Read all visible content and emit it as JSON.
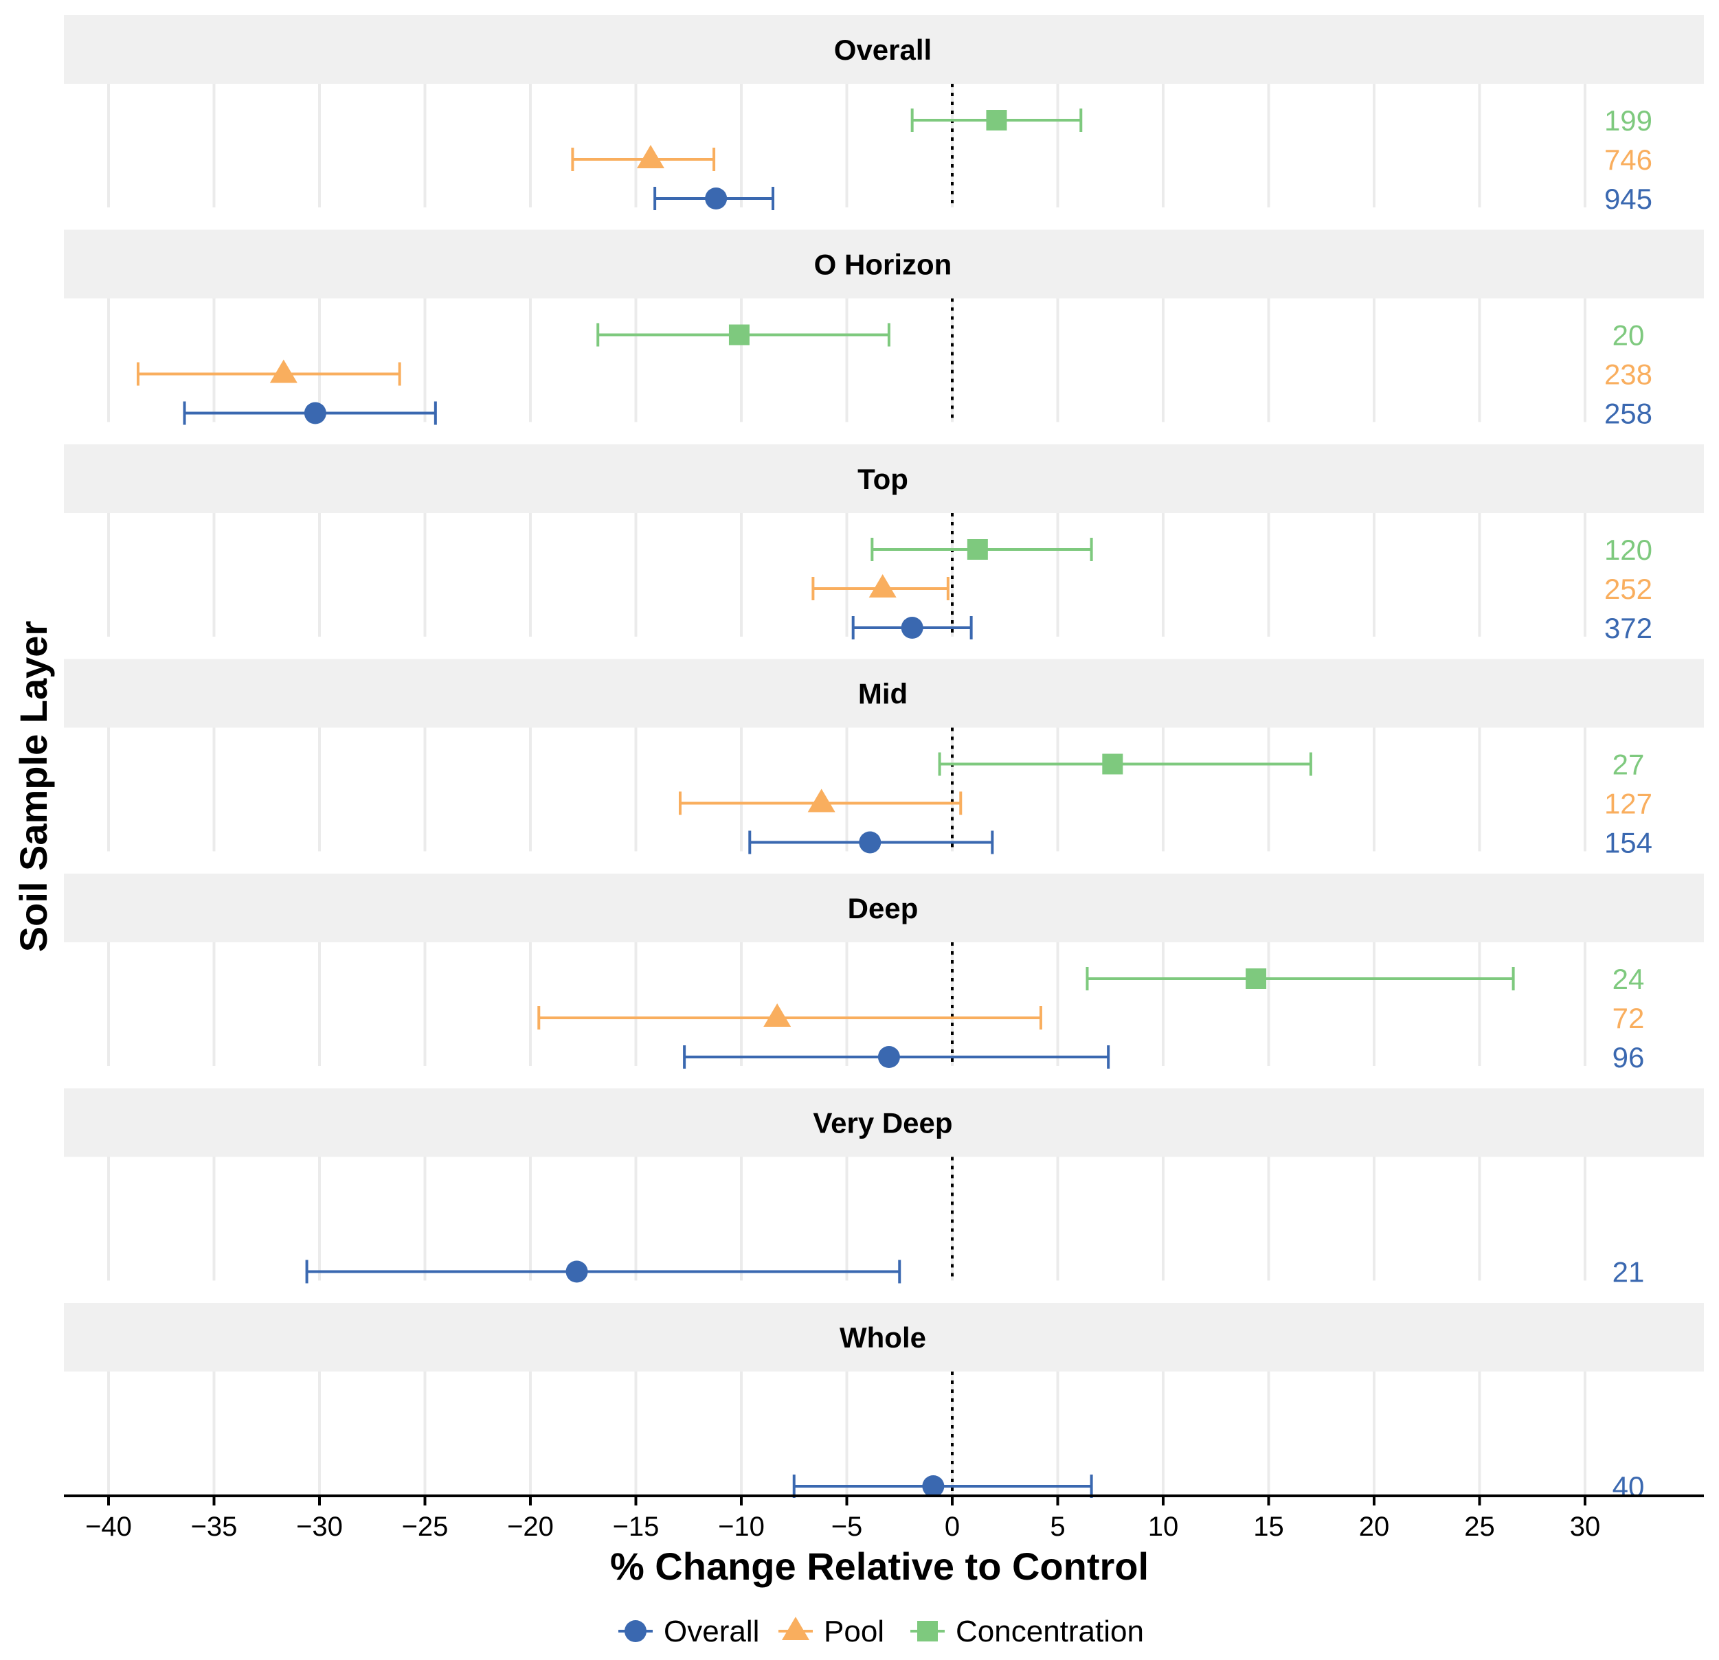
{
  "chart_data": {
    "type": "forest",
    "xlabel": "% Change Relative to Control",
    "ylabel": "Soil Sample Layer",
    "xlim": [
      -42,
      36
    ],
    "x_ticks": [
      -40,
      -35,
      -30,
      -25,
      -20,
      -15,
      -10,
      -5,
      0,
      5,
      10,
      15,
      20,
      25,
      30
    ],
    "x_tick_labels": [
      "−40",
      "−35",
      "−30",
      "−25",
      "−20",
      "−15",
      "−10",
      "−5",
      "0",
      "5",
      "10",
      "15",
      "20",
      "25",
      "30"
    ],
    "reference_line": 0,
    "series": [
      {
        "name": "Overall",
        "color": "#3a68b0",
        "marker": "circle"
      },
      {
        "name": "Pool",
        "color": "#f9ae5e",
        "marker": "triangle"
      },
      {
        "name": "Concentration",
        "color": "#7ec97e",
        "marker": "square"
      }
    ],
    "panels": [
      {
        "label": "Overall",
        "rows": [
          {
            "series": "Concentration",
            "mean": 2.1,
            "lower": -1.9,
            "upper": 6.1,
            "n": "199"
          },
          {
            "series": "Pool",
            "mean": -14.3,
            "lower": -18.0,
            "upper": -11.3,
            "n": "746"
          },
          {
            "series": "Overall",
            "mean": -11.2,
            "lower": -14.1,
            "upper": -8.5,
            "n": "945"
          }
        ]
      },
      {
        "label": "O Horizon",
        "rows": [
          {
            "series": "Concentration",
            "mean": -10.1,
            "lower": -16.8,
            "upper": -3.0,
            "n": "20"
          },
          {
            "series": "Pool",
            "mean": -31.7,
            "lower": -38.6,
            "upper": -26.2,
            "n": "238"
          },
          {
            "series": "Overall",
            "mean": -30.2,
            "lower": -36.4,
            "upper": -24.5,
            "n": "258"
          }
        ]
      },
      {
        "label": "Top",
        "rows": [
          {
            "series": "Concentration",
            "mean": 1.2,
            "lower": -3.8,
            "upper": 6.6,
            "n": "120"
          },
          {
            "series": "Pool",
            "mean": -3.3,
            "lower": -6.6,
            "upper": -0.2,
            "n": "252"
          },
          {
            "series": "Overall",
            "mean": -1.9,
            "lower": -4.7,
            "upper": 0.9,
            "n": "372"
          }
        ]
      },
      {
        "label": "Mid",
        "rows": [
          {
            "series": "Concentration",
            "mean": 7.6,
            "lower": -0.6,
            "upper": 17.0,
            "n": "27"
          },
          {
            "series": "Pool",
            "mean": -6.2,
            "lower": -12.9,
            "upper": 0.4,
            "n": "127"
          },
          {
            "series": "Overall",
            "mean": -3.9,
            "lower": -9.6,
            "upper": 1.9,
            "n": "154"
          }
        ]
      },
      {
        "label": "Deep",
        "rows": [
          {
            "series": "Concentration",
            "mean": 14.4,
            "lower": 6.4,
            "upper": 26.6,
            "n": "24"
          },
          {
            "series": "Pool",
            "mean": -8.3,
            "lower": -19.6,
            "upper": 4.2,
            "n": "72"
          },
          {
            "series": "Overall",
            "mean": -3.0,
            "lower": -12.7,
            "upper": 7.4,
            "n": "96"
          }
        ]
      },
      {
        "label": "Very Deep",
        "rows": [
          {
            "series": "Overall",
            "mean": -17.8,
            "lower": -30.6,
            "upper": -2.5,
            "n": "21"
          }
        ]
      },
      {
        "label": "Whole",
        "rows": [
          {
            "series": "Overall",
            "mean": -0.9,
            "lower": -7.5,
            "upper": 6.6,
            "n": "40"
          }
        ]
      }
    ],
    "legend": [
      "Overall",
      "Pool",
      "Concentration"
    ],
    "legend_position": "bottom"
  }
}
